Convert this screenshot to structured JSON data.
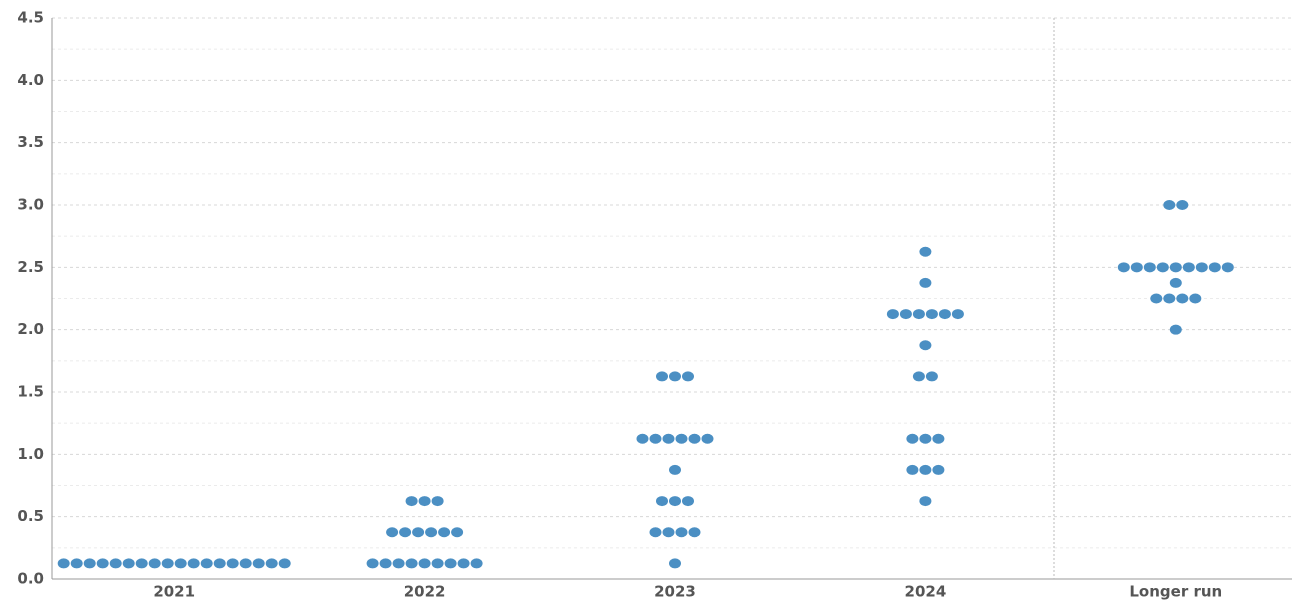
{
  "chart_data": {
    "type": "dot",
    "categories": [
      "2021",
      "2022",
      "2023",
      "2024",
      "Longer run"
    ],
    "values": [
      [
        0.125,
        0.125,
        0.125,
        0.125,
        0.125,
        0.125,
        0.125,
        0.125,
        0.125,
        0.125,
        0.125,
        0.125,
        0.125,
        0.125,
        0.125,
        0.125,
        0.125,
        0.125
      ],
      [
        0.125,
        0.125,
        0.125,
        0.125,
        0.125,
        0.125,
        0.125,
        0.125,
        0.125,
        0.375,
        0.375,
        0.375,
        0.375,
        0.375,
        0.375,
        0.625,
        0.625,
        0.625
      ],
      [
        0.125,
        0.375,
        0.375,
        0.375,
        0.375,
        0.625,
        0.625,
        0.625,
        0.875,
        1.125,
        1.125,
        1.125,
        1.125,
        1.125,
        1.125,
        1.625,
        1.625,
        1.625
      ],
      [
        0.625,
        0.875,
        0.875,
        0.875,
        1.125,
        1.125,
        1.125,
        1.625,
        1.625,
        1.875,
        2.125,
        2.125,
        2.125,
        2.125,
        2.125,
        2.125,
        2.375,
        2.625
      ],
      [
        2.0,
        2.25,
        2.25,
        2.25,
        2.25,
        2.375,
        2.5,
        2.5,
        2.5,
        2.5,
        2.5,
        2.5,
        2.5,
        2.5,
        2.5,
        3.0,
        3.0
      ]
    ],
    "color": "#4b8fc3",
    "ylim": [
      0,
      4.5
    ],
    "yticks": [
      {
        "value": 0,
        "label": "0.0"
      },
      {
        "value": 0.5,
        "label": "0.5"
      },
      {
        "value": 1,
        "label": "1.0"
      },
      {
        "value": 1.5,
        "label": "1.5"
      },
      {
        "value": 2,
        "label": "2.0"
      },
      {
        "value": 2.5,
        "label": "2.5"
      },
      {
        "value": 3,
        "label": "3.0"
      },
      {
        "value": 3.5,
        "label": "3.5"
      },
      {
        "value": 4,
        "label": "4.0"
      },
      {
        "value": 4.5,
        "label": "4.5"
      }
    ],
    "minor_grid": [
      0.25,
      0.75,
      1.25,
      1.75,
      2.25,
      2.75,
      3.25,
      3.75,
      4.25
    ],
    "grid": true
  }
}
